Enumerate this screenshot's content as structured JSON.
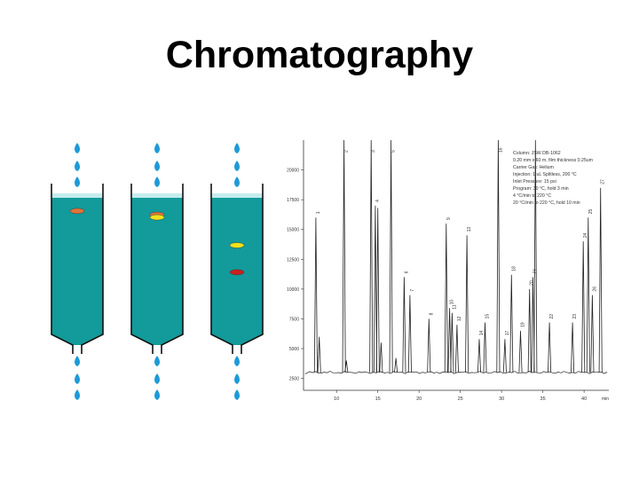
{
  "title": "Chromatography",
  "colors": {
    "column_fill": "#139a9a",
    "column_outline": "#111111",
    "drop": "#1e9ad6",
    "band_orange": "#e0743a",
    "band_yellow": "#f2e21c",
    "band_red": "#cc1f1f",
    "trace": "#222222"
  },
  "columns": [
    {
      "name": "column-1",
      "bands": [
        {
          "color": "orange",
          "depth": 0.05
        }
      ]
    },
    {
      "name": "column-2",
      "bands": [
        {
          "color": "orange",
          "depth": 0.08
        },
        {
          "color": "yellow",
          "depth": 0.08
        }
      ]
    },
    {
      "name": "column-3",
      "bands": [
        {
          "color": "yellow",
          "depth": 0.33
        },
        {
          "color": "red",
          "depth": 0.55
        }
      ]
    }
  ],
  "chart_data": {
    "type": "line",
    "x_tick_labels": [
      "10",
      "15",
      "20",
      "25",
      "30",
      "35",
      "40",
      "min"
    ],
    "x_ticks": [
      10,
      15,
      20,
      25,
      30,
      35,
      40
    ],
    "xlim": [
      6,
      43
    ],
    "y_tick_labels": [
      "2500",
      "5000",
      "7500",
      "10000",
      "12500",
      "15000",
      "17500",
      "20000"
    ],
    "y_ticks": [
      2500,
      5000,
      7500,
      10000,
      12500,
      15000,
      17500,
      20000
    ],
    "ylim": [
      1500,
      22500
    ],
    "baseline": 3000,
    "legend_lines": [
      "Column: JSW DB-1062",
      "0.20 mm x 60 m, film thickness 0.25um",
      "Carrier Gas: Helium",
      "Injection: 1 uL Splitless, 200 °C",
      "Inlet Pressure: 15 psi",
      "Program: 30 °C, hold 3 min",
      "4 °C/min to 220 °C",
      "20 °C/min to 220 °C, hold 10 min"
    ],
    "peaks": [
      {
        "label": "1",
        "x": 7.5,
        "y": 16000
      },
      {
        "label": "",
        "x": 7.9,
        "y": 6000
      },
      {
        "label": "2",
        "x": 10.9,
        "y": 22500
      },
      {
        "label": "",
        "x": 11.2,
        "y": 4000
      },
      {
        "label": "3",
        "x": 14.2,
        "y": 22500
      },
      {
        "label": "4",
        "x": 14.7,
        "y": 17000
      },
      {
        "label": "",
        "x": 15.0,
        "y": 16800
      },
      {
        "label": "",
        "x": 15.4,
        "y": 5500
      },
      {
        "label": "5",
        "x": 16.6,
        "y": 22500
      },
      {
        "label": "",
        "x": 17.2,
        "y": 4200
      },
      {
        "label": "6",
        "x": 18.2,
        "y": 11000
      },
      {
        "label": "7",
        "x": 18.9,
        "y": 9500
      },
      {
        "label": "8",
        "x": 21.2,
        "y": 7500
      },
      {
        "label": "9",
        "x": 23.3,
        "y": 15500
      },
      {
        "label": "10",
        "x": 23.7,
        "y": 8400
      },
      {
        "label": "11",
        "x": 24.0,
        "y": 8000
      },
      {
        "label": "12",
        "x": 24.6,
        "y": 7000
      },
      {
        "label": "13",
        "x": 25.8,
        "y": 14500
      },
      {
        "label": "14",
        "x": 27.3,
        "y": 5800
      },
      {
        "label": "15",
        "x": 28.0,
        "y": 7200
      },
      {
        "label": "16",
        "x": 29.6,
        "y": 22500
      },
      {
        "label": "17",
        "x": 30.4,
        "y": 5800
      },
      {
        "label": "18",
        "x": 31.2,
        "y": 11200
      },
      {
        "label": "19",
        "x": 32.3,
        "y": 6500
      },
      {
        "label": "20",
        "x": 33.4,
        "y": 10000
      },
      {
        "label": "21",
        "x": 33.8,
        "y": 11000
      },
      {
        "label": "",
        "x": 34.1,
        "y": 22500
      },
      {
        "label": "22",
        "x": 35.8,
        "y": 7200
      },
      {
        "label": "23",
        "x": 38.6,
        "y": 7200
      },
      {
        "label": "24",
        "x": 39.9,
        "y": 14000
      },
      {
        "label": "25",
        "x": 40.5,
        "y": 16000
      },
      {
        "label": "26",
        "x": 41.0,
        "y": 9500
      },
      {
        "label": "27",
        "x": 42.0,
        "y": 18500
      }
    ]
  }
}
